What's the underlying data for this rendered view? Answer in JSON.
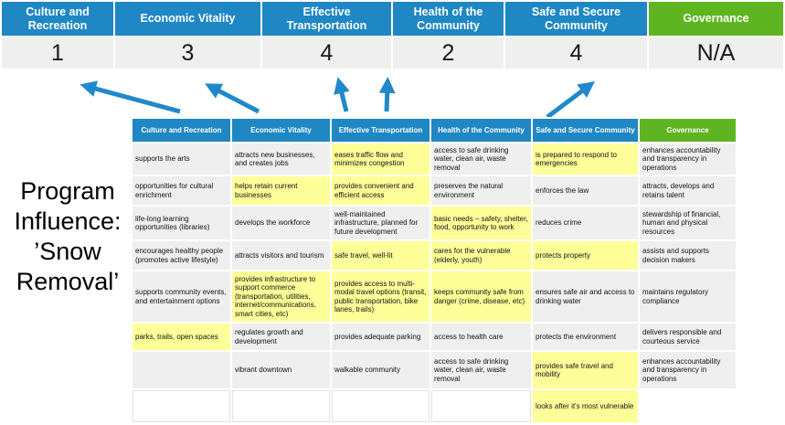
{
  "title": "Program\nInfluence:\n’Snow\nRemoval’",
  "colors": {
    "blue": "#1E87C4",
    "green": "#5EB521",
    "highlight": "#FFFF99",
    "cellgray": "#EFEFEF",
    "arrow": "#2189CB"
  },
  "summary": {
    "columns": [
      {
        "label": "Culture and Recreation",
        "score": "1",
        "type": "blue"
      },
      {
        "label": "Economic Vitality",
        "score": "3",
        "type": "blue"
      },
      {
        "label": "Effective Transportation",
        "score": "4",
        "type": "blue"
      },
      {
        "label": "Health of the Community",
        "score": "2",
        "type": "blue"
      },
      {
        "label": "Safe and Secure Community",
        "score": "4",
        "type": "blue"
      },
      {
        "label": "Governance",
        "score": "N/A",
        "type": "green"
      }
    ]
  },
  "matrix": {
    "headers": [
      {
        "label": "Culture and Recreation",
        "type": "blue"
      },
      {
        "label": "Economic Vitality",
        "type": "blue"
      },
      {
        "label": "Effective Transportation",
        "type": "blue"
      },
      {
        "label": "Health of the Community",
        "type": "blue"
      },
      {
        "label": "Safe and Secure Community",
        "type": "blue"
      },
      {
        "label": "Governance",
        "type": "green"
      }
    ],
    "rows": [
      {
        "cells": [
          {
            "text": "supports the arts",
            "style": "gray"
          },
          {
            "text": "attracts new businesses, and creates jobs",
            "style": "gray"
          },
          {
            "text": "eases traffic flow and minimizes congestion",
            "style": "hl"
          },
          {
            "text": "access to safe drinking water, clean air, waste removal",
            "style": "gray"
          },
          {
            "text": "is prepared to respond to emergencies",
            "style": "hl"
          },
          {
            "text": "enhances accountability and transparency in operations",
            "style": "gray"
          }
        ]
      },
      {
        "cells": [
          {
            "text": "opportunities for cultural enrichment",
            "style": "gray"
          },
          {
            "text": "helps retain current businesses",
            "style": "hl"
          },
          {
            "text": "provides convenient and efficient access",
            "style": "hl"
          },
          {
            "text": "preserves the natural environment",
            "style": "gray"
          },
          {
            "text": "enforces the law",
            "style": "gray"
          },
          {
            "text": "attracts, develops and retains talent",
            "style": "gray"
          }
        ]
      },
      {
        "cells": [
          {
            "text": "life-long learning opportunities (libraries)",
            "style": "gray"
          },
          {
            "text": "develops the workforce",
            "style": "gray"
          },
          {
            "text": "well-maintained infrastructure, planned for future development",
            "style": "gray"
          },
          {
            "text": "basic needs – safety, shelter, food, opportunity to work",
            "style": "hl"
          },
          {
            "text": "reduces crime",
            "style": "gray"
          },
          {
            "text": "stewardship of financial, human and physical resources",
            "style": "gray"
          }
        ]
      },
      {
        "cells": [
          {
            "text": "encourages healthy people (promotes active lifestyle)",
            "style": "gray"
          },
          {
            "text": "attracts visitors and tourism",
            "style": "gray"
          },
          {
            "text": "safe travel, well-lit",
            "style": "hl"
          },
          {
            "text": "cares for the vulnerable (elderly, youth)",
            "style": "hl"
          },
          {
            "text": "protects property",
            "style": "hl"
          },
          {
            "text": "assists and supports decision makers",
            "style": "gray"
          }
        ]
      },
      {
        "cells": [
          {
            "text": "supports community events, and entertainment options",
            "style": "gray"
          },
          {
            "text": "provides infrastructure to support commerce (transportation, utilities, internet/communications, smart cities, etc)",
            "style": "hl"
          },
          {
            "text": "provides access to multi-modal travel options (transit, public transportation, bike lanes, trails)",
            "style": "hl"
          },
          {
            "text": "keeps community safe from danger (crime, disease, etc)",
            "style": "hl"
          },
          {
            "text": "ensures safe air and access to drinking water",
            "style": "gray"
          },
          {
            "text": "maintains regulatory compliance",
            "style": "gray"
          }
        ]
      },
      {
        "cells": [
          {
            "text": "parks, trails, open spaces",
            "style": "hl"
          },
          {
            "text": "regulates growth and development",
            "style": "gray"
          },
          {
            "text": "provides adequate parking",
            "style": "gray"
          },
          {
            "text": "access to health care",
            "style": "gray"
          },
          {
            "text": "protects the environment",
            "style": "gray"
          },
          {
            "text": "delivers responsible and courteous service",
            "style": "gray"
          }
        ]
      },
      {
        "cells": [
          {
            "text": "",
            "style": "gray"
          },
          {
            "text": "vibrant downtown",
            "style": "gray"
          },
          {
            "text": "walkable community",
            "style": "gray"
          },
          {
            "text": "access to safe drinking water, clean air, waste removal",
            "style": "gray"
          },
          {
            "text": "provides safe travel and mobility",
            "style": "hl"
          },
          {
            "text": "enhances accountability and transparency in operations",
            "style": "gray"
          }
        ]
      },
      {
        "cells": [
          {
            "text": "",
            "style": "white"
          },
          {
            "text": "",
            "style": "white"
          },
          {
            "text": "",
            "style": "white"
          },
          {
            "text": "",
            "style": "white"
          },
          {
            "text": "looks after it's most vulnerable",
            "style": "hl"
          },
          {
            "text": "",
            "style": "blank"
          }
        ]
      }
    ]
  }
}
